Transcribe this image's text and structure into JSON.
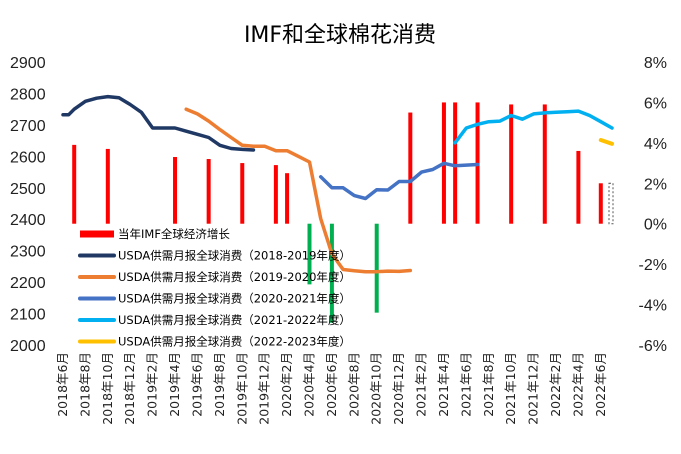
{
  "chart_data": {
    "type": "line",
    "title": "IMF和全球棉花消费",
    "xlabel": "",
    "ylabel": "",
    "ylim": [
      2000,
      2900
    ],
    "y2lim": [
      -6,
      8
    ],
    "yticks": [
      2000,
      2100,
      2200,
      2300,
      2400,
      2500,
      2600,
      2700,
      2800,
      2900
    ],
    "y2ticks": [
      "-6%",
      "-4%",
      "-2%",
      "0%",
      "2%",
      "4%",
      "6%",
      "8%"
    ],
    "y2tick_values": [
      -6,
      -4,
      -2,
      0,
      2,
      4,
      6,
      8
    ],
    "categories": [
      "2018年6月",
      "2018年8月",
      "2018年10月",
      "2018年12月",
      "2019年2月",
      "2019年4月",
      "2019年6月",
      "2019年8月",
      "2019年10月",
      "2019年12月",
      "2020年2月",
      "2020年4月",
      "2020年6月",
      "2020年8月",
      "2020年10月",
      "2020年12月",
      "2021年2月",
      "2021年4月",
      "2021年6月",
      "2021年8月",
      "2021年10月",
      "2021年12月",
      "2022年2月",
      "2022年4月",
      "2022年6月"
    ],
    "grid": false,
    "legend_position": "lower-left",
    "bar_series": {
      "name": "当年IMF全球经济增长",
      "axis": "right",
      "unit": "%",
      "points": [
        {
          "month": 1,
          "value": 3.9
        },
        {
          "month": 4,
          "value": 3.7
        },
        {
          "month": 10,
          "value": 3.3
        },
        {
          "month": 13,
          "value": 3.2
        },
        {
          "month": 16,
          "value": 3.0
        },
        {
          "month": 19,
          "value": 2.9
        },
        {
          "month": 20,
          "value": 2.5
        },
        {
          "month": 22,
          "value": -3.0
        },
        {
          "month": 24,
          "value": -4.9
        },
        {
          "month": 28,
          "value": -4.4
        },
        {
          "month": 31,
          "value": 5.5
        },
        {
          "month": 34,
          "value": 6.0
        },
        {
          "month": 35,
          "value": 6.0
        },
        {
          "month": 37,
          "value": 6.0
        },
        {
          "month": 40,
          "value": 5.9
        },
        {
          "month": 43,
          "value": 5.9
        },
        {
          "month": 46,
          "value": 3.6
        },
        {
          "month": 48,
          "value": 2.0
        }
      ]
    },
    "series": [
      {
        "name": "USDA供需月报全球消费（2018-2019年度）",
        "color": "#1f3864",
        "points": [
          [
            0,
            2732
          ],
          [
            0.5,
            2732
          ],
          [
            1,
            2750
          ],
          [
            2,
            2775
          ],
          [
            3,
            2785
          ],
          [
            4,
            2790
          ],
          [
            5,
            2786
          ],
          [
            6,
            2765
          ],
          [
            7,
            2740
          ],
          [
            8,
            2690
          ],
          [
            9,
            2690
          ],
          [
            10,
            2690
          ],
          [
            11,
            2680
          ],
          [
            12,
            2670
          ],
          [
            13,
            2660
          ],
          [
            14,
            2635
          ],
          [
            15,
            2625
          ],
          [
            16,
            2622
          ],
          [
            17,
            2620
          ]
        ]
      },
      {
        "name": "USDA供需月报全球消费（2019-2020年度）",
        "color": "#ed7d31",
        "points": [
          [
            11,
            2750
          ],
          [
            12,
            2735
          ],
          [
            13,
            2712
          ],
          [
            14,
            2685
          ],
          [
            15,
            2660
          ],
          [
            16,
            2635
          ],
          [
            17,
            2632
          ],
          [
            18,
            2632
          ],
          [
            19,
            2618
          ],
          [
            20,
            2618
          ],
          [
            21,
            2600
          ],
          [
            22,
            2582
          ],
          [
            23,
            2402
          ],
          [
            24,
            2290
          ],
          [
            25,
            2240
          ],
          [
            26,
            2236
          ],
          [
            27,
            2233
          ],
          [
            28,
            2233
          ],
          [
            29,
            2235
          ],
          [
            30,
            2234
          ],
          [
            31,
            2237
          ]
        ]
      },
      {
        "name": "USDA供需月报全球消费（2020-2021年度）",
        "color": "#4472c4",
        "points": [
          [
            23,
            2535
          ],
          [
            24,
            2500
          ],
          [
            25,
            2500
          ],
          [
            26,
            2475
          ],
          [
            27,
            2466
          ],
          [
            28,
            2494
          ],
          [
            29,
            2493
          ],
          [
            30,
            2520
          ],
          [
            31,
            2520
          ],
          [
            32,
            2550
          ],
          [
            33,
            2558
          ],
          [
            34,
            2578
          ],
          [
            35,
            2570
          ],
          [
            36,
            2572
          ],
          [
            37,
            2574
          ]
        ]
      },
      {
        "name": "USDA供需月报全球消费（2021-2022年度）",
        "color": "#00b0f0",
        "points": [
          [
            35,
            2643
          ],
          [
            36,
            2690
          ],
          [
            37,
            2702
          ],
          [
            38,
            2710
          ],
          [
            39,
            2712
          ],
          [
            40,
            2730
          ],
          [
            41,
            2718
          ],
          [
            42,
            2735
          ],
          [
            43,
            2738
          ],
          [
            44,
            2740
          ],
          [
            45,
            2742
          ],
          [
            46,
            2744
          ],
          [
            47,
            2730
          ],
          [
            48,
            2710
          ],
          [
            49,
            2690
          ]
        ]
      },
      {
        "name": "USDA供需月报全球消费（2022-2023年度）",
        "color": "#ffc000",
        "points": [
          [
            48,
            2652
          ],
          [
            49,
            2640
          ]
        ]
      }
    ]
  },
  "colors": {
    "bar_positive": "#ff0000",
    "bar_negative": "#00b050",
    "axis_text": "#222222"
  }
}
